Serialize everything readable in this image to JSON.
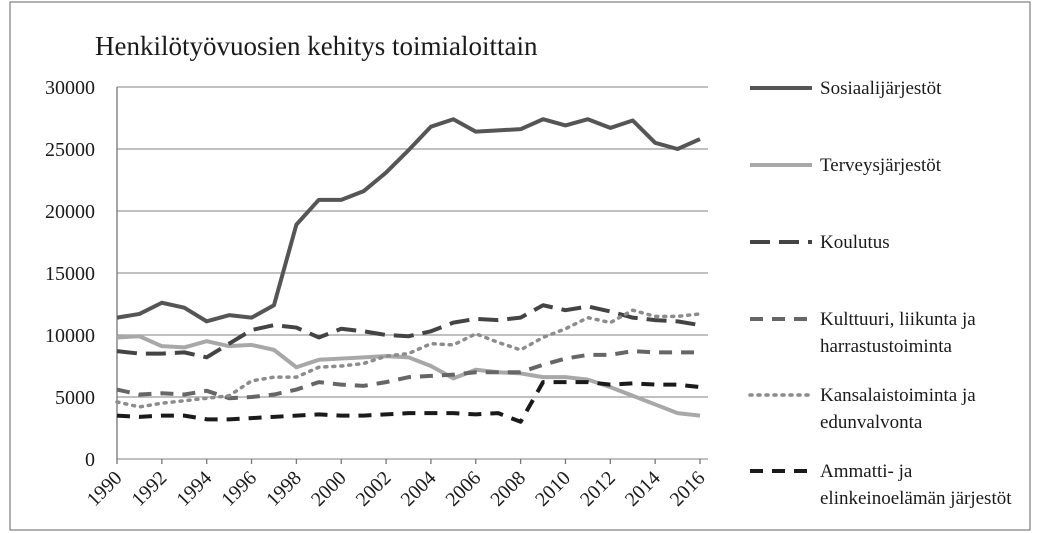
{
  "chart_data": {
    "type": "line",
    "title": "Henkilötyövuosien kehitys toimialoittain",
    "x": [
      1990,
      1991,
      1992,
      1993,
      1994,
      1995,
      1996,
      1997,
      1998,
      1999,
      2000,
      2001,
      2002,
      2003,
      2004,
      2005,
      2006,
      2007,
      2008,
      2009,
      2010,
      2011,
      2012,
      2013,
      2014,
      2015,
      2016
    ],
    "xlim": [
      1990,
      2016
    ],
    "xticks": [
      1990,
      1992,
      1994,
      1996,
      1998,
      2000,
      2002,
      2004,
      2006,
      2008,
      2010,
      2012,
      2014,
      2016
    ],
    "ylim": [
      0,
      30000
    ],
    "yticks": [
      0,
      5000,
      10000,
      15000,
      20000,
      25000,
      30000
    ],
    "grid": true,
    "legend": "right",
    "series": [
      {
        "name": "Sosiaalijärjestöt",
        "color": "#555555",
        "dash": "solid",
        "values": [
          11400,
          11700,
          12600,
          12200,
          11100,
          11600,
          11400,
          12400,
          18900,
          20900,
          20900,
          21600,
          23100,
          24900,
          26800,
          27400,
          26400,
          26500,
          26600,
          27400,
          26900,
          27400,
          26700,
          27300,
          25500,
          25000,
          25800
        ]
      },
      {
        "name": "Terveysjärjestöt",
        "color": "#a8a8a8",
        "dash": "solid",
        "values": [
          9800,
          9900,
          9100,
          9000,
          9500,
          9100,
          9200,
          8800,
          7400,
          8000,
          8100,
          8200,
          8300,
          8200,
          7500,
          6500,
          7200,
          7000,
          6900,
          6600,
          6600,
          6400,
          5800,
          5100,
          4400,
          3700,
          3500
        ]
      },
      {
        "name": "Koulutus",
        "color": "#444444",
        "dash": "long-dash",
        "values": [
          8700,
          8500,
          8500,
          8600,
          8200,
          9300,
          10400,
          10800,
          10600,
          9800,
          10500,
          10300,
          10000,
          9900,
          10300,
          11000,
          11300,
          11200,
          11400,
          12400,
          12000,
          12300,
          11900,
          11400,
          11200,
          11100,
          10800
        ]
      },
      {
        "name": "Kulttuuri, liikunta ja harrastustoiminta",
        "color": "#666666",
        "dash": "dash",
        "values": [
          5600,
          5200,
          5300,
          5200,
          5500,
          4900,
          5000,
          5200,
          5600,
          6200,
          6000,
          5900,
          6200,
          6600,
          6700,
          6800,
          7000,
          7000,
          7000,
          7600,
          8100,
          8400,
          8400,
          8700,
          8600,
          8600,
          8600
        ]
      },
      {
        "name": "Kansalaistoiminta ja edunvalvonta",
        "color": "#8c8c8c",
        "dash": "dot",
        "values": [
          4600,
          4200,
          4500,
          4700,
          4900,
          5100,
          6300,
          6600,
          6600,
          7400,
          7500,
          7700,
          8300,
          8500,
          9300,
          9200,
          10100,
          9400,
          8800,
          9800,
          10500,
          11400,
          11000,
          12000,
          11500,
          11500,
          11700
        ]
      },
      {
        "name": "Ammatti- ja elinkeinoelämän järjestöt",
        "color": "#1a1a1a",
        "dash": "dash",
        "values": [
          3500,
          3400,
          3500,
          3500,
          3200,
          3200,
          3300,
          3400,
          3500,
          3600,
          3500,
          3500,
          3600,
          3700,
          3700,
          3700,
          3600,
          3700,
          3000,
          6200,
          6200,
          6200,
          6000,
          6100,
          6000,
          6000,
          5800
        ]
      }
    ]
  }
}
